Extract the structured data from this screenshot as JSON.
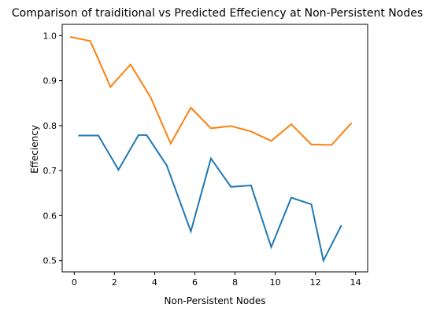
{
  "chart_data": {
    "type": "line",
    "title": "Comparison of traiditional vs Predicted Effeciency at Non-Persistent Nodes",
    "xlabel": "Non-Persistent Nodes",
    "ylabel": "Effeciency",
    "xlim": [
      -0.6,
      14.6
    ],
    "ylim": [
      0.475,
      1.025
    ],
    "xticks": [
      0,
      2,
      4,
      6,
      8,
      10,
      12,
      14
    ],
    "yticks": [
      0.5,
      0.6,
      0.7,
      0.8,
      0.9,
      1.0
    ],
    "xtick_labels": [
      "0",
      "2",
      "4",
      "6",
      "8",
      "10",
      "12",
      "14"
    ],
    "ytick_labels": [
      "0.5",
      "0.6",
      "0.7",
      "0.8",
      "0.9",
      "1.0"
    ],
    "grid": false,
    "series": [
      {
        "color": "#ff7f0e",
        "x": [
          -0.2,
          0.8,
          1.8,
          2.8,
          3.8,
          4.8,
          5.8,
          6.8,
          7.8,
          8.8,
          9.8,
          10.8,
          11.8,
          12.8,
          13.8
        ],
        "y": [
          0.997,
          0.988,
          0.886,
          0.936,
          0.863,
          0.76,
          0.84,
          0.794,
          0.799,
          0.787,
          0.766,
          0.803,
          0.758,
          0.757,
          0.806
        ]
      },
      {
        "color": "#1f77b4",
        "x": [
          0.2,
          1.2,
          2.2,
          3.2,
          3.6,
          4.6,
          5.8,
          6.8,
          7.8,
          8.8,
          9.8,
          10.8,
          11.8,
          12.4,
          13.3
        ],
        "y": [
          0.778,
          0.778,
          0.702,
          0.779,
          0.779,
          0.712,
          0.565,
          0.727,
          0.664,
          0.667,
          0.53,
          0.64,
          0.625,
          0.5,
          0.579
        ]
      }
    ]
  }
}
